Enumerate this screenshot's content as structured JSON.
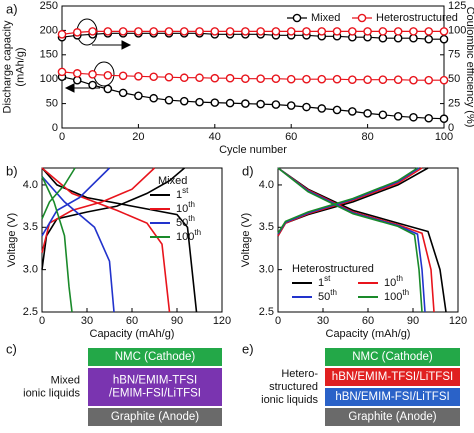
{
  "chart_data": [
    {
      "panel": "a)",
      "type": "line",
      "markers": true,
      "xlabel": "Cycle number",
      "ylabel": [
        "Discharge capacity",
        "(mAh/g)"
      ],
      "y2label": "Coulombic efficiency (%)",
      "xlim": [
        0,
        100
      ],
      "xticks": [
        0,
        20,
        40,
        60,
        80,
        100
      ],
      "ylim": [
        0,
        250
      ],
      "yticks": [
        0,
        50,
        100,
        150,
        200,
        250
      ],
      "y2lim": [
        0,
        125
      ],
      "y2ticks": [
        0,
        25,
        50,
        75,
        100,
        125
      ],
      "x": [
        0,
        4,
        8,
        12,
        16,
        20,
        24,
        28,
        32,
        36,
        40,
        44,
        48,
        52,
        56,
        60,
        64,
        68,
        72,
        76,
        80,
        84,
        88,
        92,
        96,
        100
      ],
      "series": [
        {
          "name": "Mixed",
          "color": "#000000",
          "values": [
            105,
            98,
            88,
            80,
            72,
            66,
            61,
            57,
            55,
            53,
            52,
            51,
            50,
            49,
            48,
            46,
            43,
            40,
            37,
            34,
            30,
            27,
            24,
            22,
            20,
            19
          ]
        },
        {
          "name": "Heterostructured",
          "color": "#e8141c",
          "values": [
            115,
            112,
            110,
            108,
            107,
            106,
            105,
            104,
            103,
            103,
            102,
            102,
            101,
            101,
            101,
            100,
            100,
            100,
            100,
            99,
            99,
            99,
            99,
            98,
            98,
            98
          ]
        },
        {
          "name": "Mixed",
          "color": "#000000",
          "axis": "y2",
          "values": [
            93,
            95,
            96,
            97,
            97,
            97,
            97,
            97,
            97,
            97,
            96,
            96,
            96,
            96,
            95,
            95,
            95,
            94,
            94,
            93,
            93,
            92,
            92,
            92,
            91,
            91
          ]
        },
        {
          "name": "Heterostructured",
          "color": "#e8141c",
          "axis": "y2",
          "values": [
            96,
            98,
            99,
            99,
            99,
            99,
            99,
            99,
            99,
            99,
            99,
            99,
            99,
            99,
            99,
            99,
            99,
            99,
            99,
            99,
            99,
            99,
            99,
            99,
            99,
            99
          ]
        }
      ]
    },
    {
      "panel": "b)",
      "type": "line",
      "markers": false,
      "xlabel": "Capacity (mAh/g)",
      "ylabel": [
        "Voltage (V)"
      ],
      "legend_title": "Mixed",
      "xlim": [
        0,
        120
      ],
      "xticks": [
        0,
        30,
        60,
        90,
        120
      ],
      "ylim": [
        2.5,
        4.2
      ],
      "yticks": [
        2.5,
        {
          "value": 3,
          "label": "3.0"
        },
        3.5,
        {
          "value": 4,
          "label": "4.0"
        }
      ],
      "series": [
        {
          "name": "1st",
          "color": "#000000",
          "x": [
            0,
            3,
            10,
            30,
            50,
            70,
            85,
            95,
            null,
            0,
            10,
            30,
            60,
            90,
            97,
            100,
            103
          ],
          "values": [
            3.0,
            3.4,
            3.6,
            3.68,
            3.75,
            3.9,
            4.05,
            4.2,
            null,
            4.2,
            4.0,
            3.85,
            3.75,
            3.65,
            3.5,
            3.0,
            2.5
          ]
        },
        {
          "name": "10th",
          "color": "#e8141c",
          "x": [
            0,
            5,
            20,
            40,
            60,
            75,
            null,
            0,
            20,
            50,
            70,
            80,
            85
          ],
          "values": [
            3.2,
            3.55,
            3.7,
            3.8,
            3.95,
            4.2,
            null,
            4.2,
            3.9,
            3.7,
            3.55,
            3.3,
            2.5
          ]
        },
        {
          "name": "50th",
          "color": "#2233cc",
          "x": [
            0,
            10,
            25,
            45,
            null,
            0,
            15,
            35,
            45,
            48
          ],
          "values": [
            3.4,
            3.7,
            3.85,
            4.2,
            null,
            4.1,
            3.8,
            3.5,
            3.1,
            2.5
          ]
        },
        {
          "name": "100th",
          "color": "#1a8a2a",
          "x": [
            0,
            5,
            15,
            22,
            null,
            0,
            8,
            15,
            18,
            20
          ],
          "values": [
            3.6,
            3.8,
            4.0,
            4.2,
            null,
            4.1,
            3.8,
            3.4,
            2.8,
            2.5
          ]
        }
      ]
    },
    {
      "panel": "d)",
      "type": "line",
      "markers": false,
      "xlabel": "Capacity (mAh/g)",
      "ylabel": [
        "Voltage (V)"
      ],
      "legend_title": "Heterostructured",
      "xlim": [
        0,
        120
      ],
      "xticks": [
        0,
        30,
        60,
        90,
        120
      ],
      "ylim": [
        2.5,
        4.2
      ],
      "yticks": [
        2.5,
        {
          "value": 3,
          "label": "3.0"
        },
        3.5,
        {
          "value": 4,
          "label": "4.0"
        }
      ],
      "series": [
        {
          "name": "1st",
          "color": "#000000",
          "x": [
            0,
            5,
            20,
            50,
            80,
            100,
            null,
            0,
            20,
            50,
            80,
            100,
            108,
            112
          ],
          "values": [
            3.4,
            3.55,
            3.65,
            3.8,
            4.0,
            4.2,
            null,
            4.2,
            3.95,
            3.7,
            3.55,
            3.45,
            3.0,
            2.5
          ]
        },
        {
          "name": "10th",
          "color": "#e8141c",
          "x": [
            0,
            5,
            20,
            50,
            80,
            96,
            null,
            0,
            20,
            50,
            80,
            96,
            102,
            104
          ],
          "values": [
            3.4,
            3.55,
            3.66,
            3.82,
            4.02,
            4.2,
            null,
            4.2,
            3.94,
            3.68,
            3.53,
            3.43,
            3.0,
            2.5
          ]
        },
        {
          "name": "50th",
          "color": "#2233cc",
          "x": [
            0,
            5,
            20,
            50,
            80,
            94,
            null,
            0,
            20,
            50,
            80,
            93,
            96,
            98
          ],
          "values": [
            3.42,
            3.56,
            3.67,
            3.83,
            4.04,
            4.2,
            null,
            4.2,
            3.93,
            3.67,
            3.52,
            3.42,
            3.0,
            2.5
          ]
        },
        {
          "name": "100th",
          "color": "#1a8a2a",
          "x": [
            0,
            5,
            20,
            50,
            80,
            93,
            null,
            0,
            20,
            50,
            80,
            91,
            94,
            96
          ],
          "values": [
            3.43,
            3.57,
            3.68,
            3.84,
            4.05,
            4.2,
            null,
            4.2,
            3.92,
            3.66,
            3.51,
            3.41,
            3.0,
            2.5
          ]
        }
      ]
    }
  ],
  "diagrams": [
    {
      "panel": "c)",
      "label": [
        "Mixed",
        "ionic liquids"
      ],
      "layers": [
        {
          "text": [
            "NMC (Cathode)"
          ],
          "color": "#23a848"
        },
        {
          "text": [
            "hBN/EMIM-TFSI",
            "/EMIM-FSI/LiTFSI"
          ],
          "color": "#7a34b0"
        },
        {
          "text": [
            "Graphite (Anode)"
          ],
          "color": "#6a6a6a"
        }
      ]
    },
    {
      "panel": "e)",
      "label": [
        "Hetero-",
        "structured",
        "ionic liquids"
      ],
      "layers": [
        {
          "text": [
            "NMC (Cathode)"
          ],
          "color": "#23a848"
        },
        {
          "text": [
            "hBN/EMIM-TFSI/LiTFSI"
          ],
          "color": "#e02020"
        },
        {
          "text": [
            "hBN/EMIM-FSI/LiTFSI"
          ],
          "color": "#2a62c8"
        },
        {
          "text": [
            "Graphite (Anode)"
          ],
          "color": "#6a6a6a"
        }
      ]
    }
  ]
}
